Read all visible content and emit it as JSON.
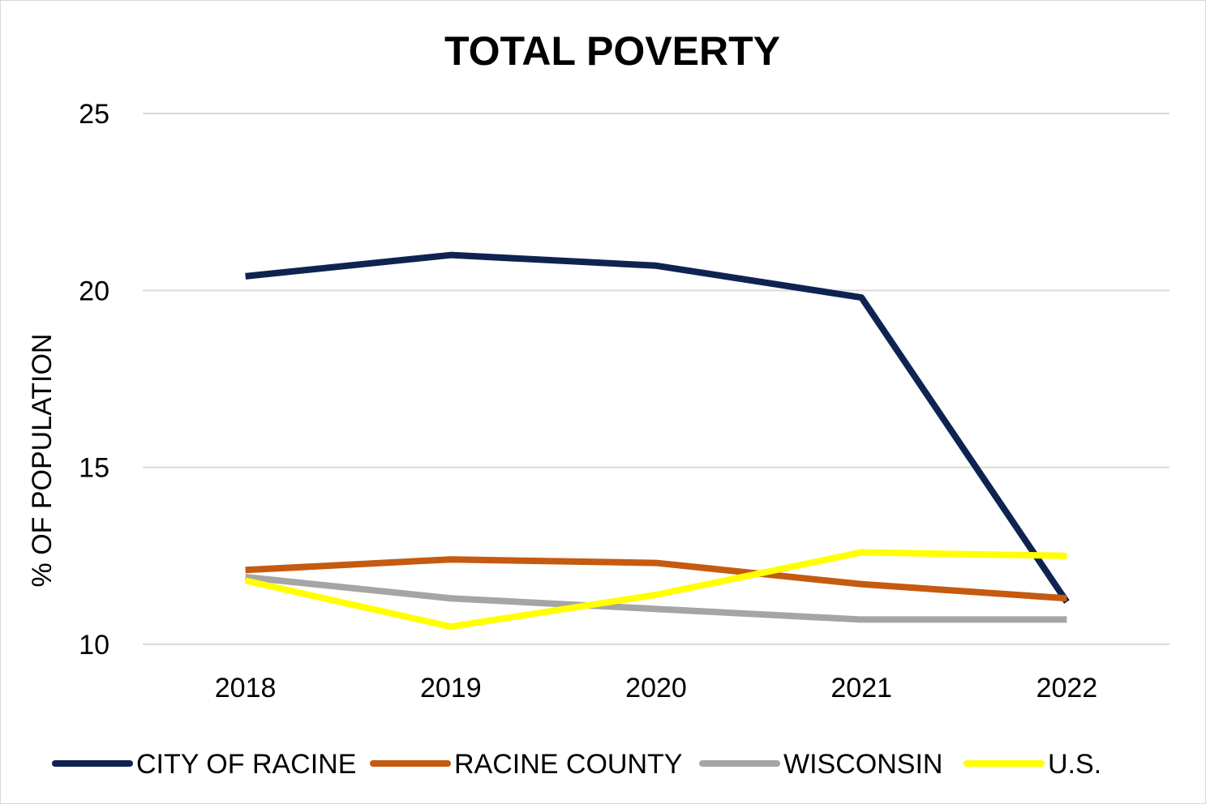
{
  "chart_data": {
    "type": "line",
    "title": "TOTAL POVERTY",
    "xlabel": "",
    "ylabel": "% OF POPULATION",
    "categories": [
      "2018",
      "2019",
      "2020",
      "2021",
      "2022"
    ],
    "ylim": [
      10,
      25
    ],
    "yticks": [
      10,
      15,
      20,
      25
    ],
    "grid": true,
    "legend_position": "bottom",
    "series": [
      {
        "name": "CITY OF RACINE",
        "color": "#0e2350",
        "values": [
          20.4,
          21.0,
          20.7,
          19.8,
          11.2
        ]
      },
      {
        "name": "RACINE COUNTY",
        "color": "#c55a11",
        "values": [
          12.1,
          12.4,
          12.3,
          11.7,
          11.3
        ]
      },
      {
        "name": "WISCONSIN",
        "color": "#a5a5a5",
        "values": [
          11.9,
          11.3,
          11.0,
          10.7,
          10.7
        ]
      },
      {
        "name": "U.S.",
        "color": "#ffff00",
        "values": [
          11.8,
          10.5,
          11.4,
          12.6,
          12.5
        ]
      }
    ]
  }
}
